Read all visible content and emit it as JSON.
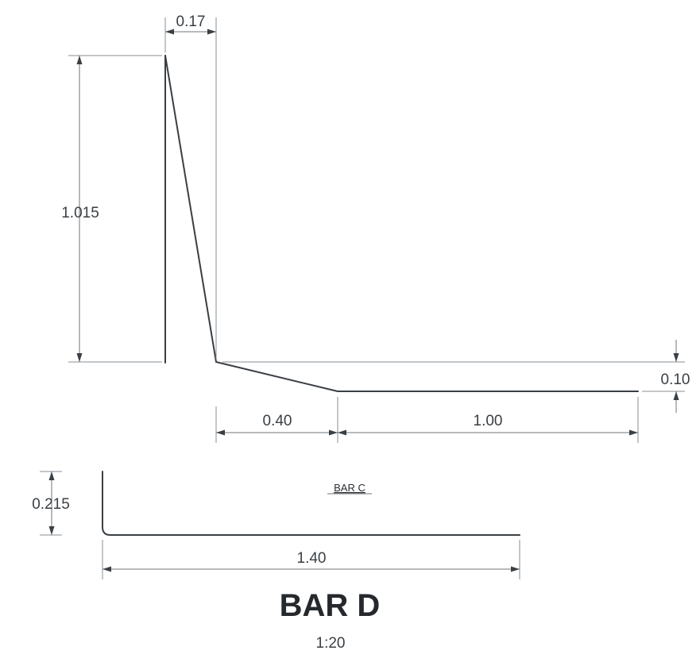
{
  "bar_c": {
    "label": "BAR C",
    "dimensions": {
      "top_width": "0.17",
      "height": "1.015",
      "offset": "0.10",
      "sloped_run": "0.40",
      "flat_run": "1.00"
    }
  },
  "bar_d": {
    "title": "BAR D",
    "scale": "1:20",
    "dimensions": {
      "height": "0.215",
      "length": "1.40"
    }
  },
  "colors": {
    "line": "#3a3f44",
    "extension": "#8a8f94"
  }
}
